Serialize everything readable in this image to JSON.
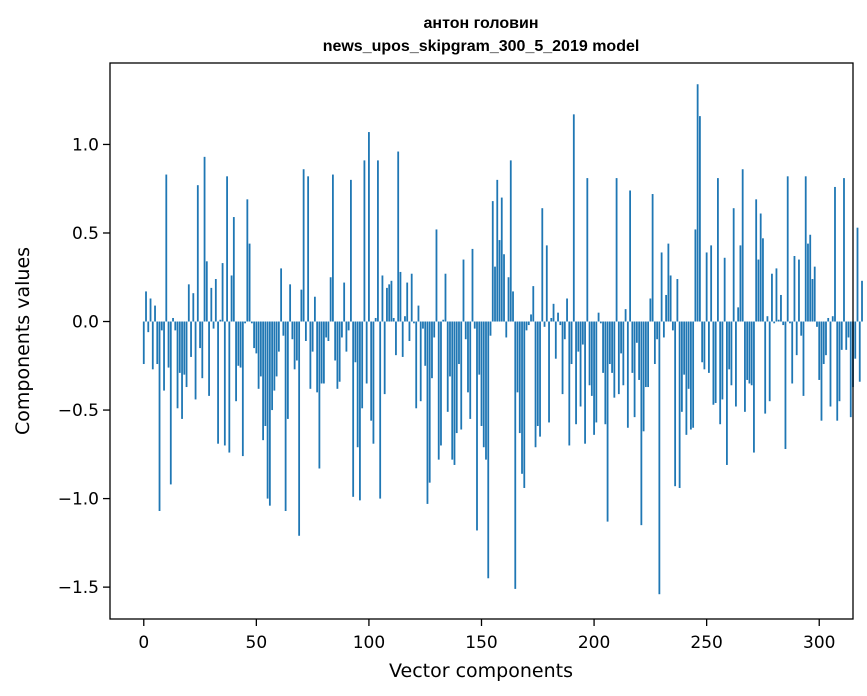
{
  "chart_data": {
    "type": "bar",
    "title_line1": "антон головин",
    "title_line2": "news_upos_skipgram_300_5_2019 model",
    "xlabel": "Vector components",
    "ylabel": "Components values",
    "xlim": [
      -15,
      315
    ],
    "ylim": [
      -1.68,
      1.46
    ],
    "x_ticks": [
      0,
      50,
      100,
      150,
      200,
      250,
      300
    ],
    "x_tick_labels": [
      "0",
      "50",
      "100",
      "150",
      "200",
      "250",
      "300"
    ],
    "y_ticks": [
      1.0,
      0.5,
      0.0,
      -0.5,
      -1.0,
      -1.5
    ],
    "y_tick_labels": [
      "1.0",
      "0.5",
      "0.0",
      "−0.5",
      "−1.0",
      "−1.5"
    ],
    "bar_color": "#1f77b4",
    "bar_width": 0.8,
    "values": [
      -0.24,
      0.17,
      -0.06,
      0.13,
      -0.27,
      0.09,
      -0.24,
      -1.07,
      -0.05,
      -0.39,
      0.83,
      -0.26,
      -0.92,
      0.02,
      -0.05,
      -0.49,
      -0.29,
      -0.55,
      -0.3,
      -0.37,
      0.21,
      -0.2,
      0.16,
      -0.44,
      0.77,
      -0.15,
      -0.32,
      0.93,
      0.34,
      -0.42,
      0.19,
      -0.04,
      0.24,
      -0.69,
      0.01,
      0.33,
      -0.7,
      0.82,
      -0.74,
      0.26,
      0.59,
      -0.45,
      -0.25,
      -0.26,
      -0.76,
      -0.01,
      0.69,
      0.44,
      -0.01,
      -0.15,
      -0.18,
      -0.38,
      -0.31,
      -0.67,
      -0.59,
      -1.0,
      -1.04,
      -0.5,
      -0.39,
      -0.31,
      -0.17,
      0.3,
      -0.08,
      -1.07,
      -0.55,
      0.21,
      -0.1,
      -0.27,
      -0.22,
      -1.21,
      0.18,
      0.86,
      -0.11,
      0.82,
      -0.38,
      -0.17,
      0.14,
      -0.4,
      -0.83,
      -0.35,
      -0.35,
      -0.09,
      -0.11,
      0.25,
      0.83,
      -0.22,
      -0.38,
      -0.34,
      -0.09,
      0.22,
      -0.17,
      -0.05,
      0.8,
      -0.99,
      -0.23,
      -0.71,
      -1.01,
      -0.49,
      0.91,
      -0.35,
      1.07,
      -0.56,
      -0.69,
      0.02,
      0.91,
      -1.0,
      0.26,
      -0.41,
      0.19,
      0.21,
      0.23,
      0.02,
      -0.19,
      0.96,
      0.28,
      -0.2,
      0.03,
      0.22,
      -0.11,
      0.27,
      -0.01,
      -0.49,
      0.09,
      -0.45,
      -0.04,
      -0.25,
      -1.03,
      -0.91,
      -0.32,
      -0.09,
      0.52,
      -0.78,
      -0.7,
      0.01,
      0.27,
      -0.51,
      -0.31,
      -0.78,
      -0.81,
      -0.63,
      -0.24,
      -0.61,
      0.35,
      -0.1,
      -0.4,
      -0.55,
      0.41,
      -0.04,
      -1.18,
      -0.3,
      -0.59,
      -0.71,
      -0.78,
      -1.45,
      -0.08,
      0.68,
      0.31,
      0.8,
      0.46,
      0.7,
      0.38,
      -0.09,
      0.25,
      0.91,
      0.17,
      -1.51,
      -0.4,
      -0.63,
      -0.86,
      -0.94,
      -0.05,
      -0.02,
      0.04,
      0.2,
      -0.71,
      -0.59,
      -0.65,
      0.64,
      -0.03,
      0.43,
      -0.57,
      0.02,
      0.1,
      -0.21,
      0.05,
      -0.02,
      -0.41,
      -0.1,
      0.13,
      -0.7,
      -0.24,
      1.17,
      -0.58,
      -0.17,
      -0.48,
      -0.13,
      -0.69,
      0.81,
      -0.36,
      -0.42,
      -0.64,
      -0.57,
      0.05,
      -0.01,
      -0.29,
      -0.58,
      -1.13,
      -0.24,
      -0.29,
      -0.43,
      0.81,
      -0.41,
      -0.18,
      -0.36,
      0.07,
      -0.6,
      0.74,
      -0.29,
      -0.54,
      -0.12,
      -0.33,
      -1.15,
      -0.62,
      -0.37,
      -0.37,
      0.13,
      0.72,
      -0.24,
      -0.1,
      -1.54,
      0.39,
      -0.09,
      0.15,
      0.44,
      0.26,
      -0.05,
      -0.93,
      0.24,
      -0.94,
      -0.51,
      -0.3,
      -0.64,
      -0.38,
      -0.61,
      -0.6,
      0.52,
      1.34,
      1.16,
      -0.23,
      -0.27,
      0.39,
      -0.29,
      0.43,
      -0.47,
      -0.46,
      0.81,
      -0.58,
      -0.44,
      0.36,
      -0.81,
      -0.27,
      -0.36,
      0.64,
      -0.48,
      0.08,
      0.43,
      0.86,
      -0.51,
      -0.33,
      -0.35,
      -0.36,
      -0.74,
      0.69,
      0.35,
      0.61,
      0.47,
      -0.52,
      0.03,
      -0.45,
      0.27,
      -0.01,
      0.3,
      0.01,
      0.15,
      -0.02,
      -0.72,
      0.82,
      -0.01,
      -0.35,
      0.37,
      -0.19,
      0.35,
      -0.08,
      -0.42,
      0.82,
      0.44,
      0.49,
      0.24,
      0.31,
      -0.03,
      -0.33,
      -0.56,
      -0.24,
      -0.19,
      0.02,
      -0.48,
      0.03,
      0.76,
      -0.56,
      -0.45,
      -0.16,
      0.81,
      -0.16,
      -0.09,
      -0.54,
      -0.37,
      -0.21,
      0.53,
      -0.34,
      0.23
    ]
  }
}
